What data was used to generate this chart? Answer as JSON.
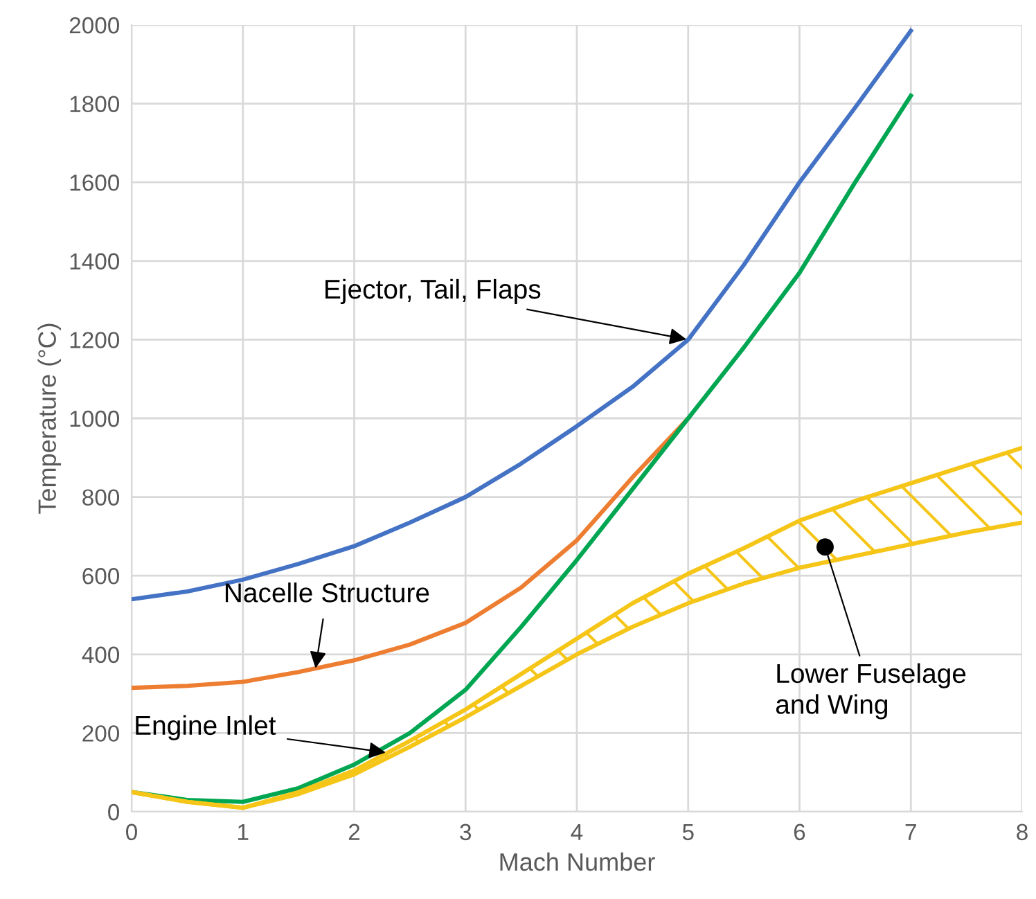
{
  "chart_data": {
    "type": "line",
    "xlabel": "Mach Number",
    "ylabel": "Temperature (°C)",
    "xlim": [
      0,
      8
    ],
    "xticks": [
      0,
      1,
      2,
      3,
      4,
      5,
      6,
      7,
      8
    ],
    "ylim": [
      0,
      2000
    ],
    "yticks": [
      0,
      200,
      400,
      600,
      800,
      1000,
      1200,
      1400,
      1600,
      1800,
      2000
    ],
    "grid": true,
    "series": [
      {
        "color": "#4472c4",
        "x": [
          0,
          0.5,
          1,
          1.5,
          2,
          2.5,
          3,
          3.5,
          4,
          4.5,
          5,
          5.5,
          6,
          6.5,
          7
        ],
        "values": [
          540,
          560,
          590,
          630,
          675,
          735,
          800,
          885,
          980,
          1080,
          1200,
          1390,
          1600,
          1790,
          1985
        ]
      },
      {
        "color": "#ed7d31",
        "x": [
          0,
          0.5,
          1,
          1.5,
          2,
          2.5,
          3,
          3.5,
          4,
          4.5,
          5
        ],
        "values": [
          315,
          320,
          330,
          355,
          385,
          425,
          480,
          570,
          690,
          850,
          1000
        ]
      },
      {
        "color": "#00a651",
        "x": [
          0,
          0.5,
          1,
          1.5,
          2,
          2.5,
          3,
          3.5,
          4,
          4.5,
          5,
          5.5,
          6,
          6.5,
          7
        ],
        "values": [
          50,
          30,
          25,
          60,
          120,
          200,
          310,
          470,
          640,
          820,
          1000,
          1180,
          1370,
          1600,
          1820
        ]
      },
      {
        "color": "#f5c518",
        "x": [
          0,
          0.5,
          1,
          1.5,
          2,
          2.5,
          3,
          3.5,
          4,
          4.5,
          5,
          5.5,
          6,
          6.5,
          7,
          7.5,
          8
        ],
        "values": [
          50,
          25,
          10,
          45,
          95,
          165,
          240,
          320,
          400,
          470,
          530,
          580,
          620,
          650,
          680,
          710,
          735
        ]
      },
      {
        "color": "#f5c518",
        "x": [
          0,
          0.5,
          1,
          1.5,
          2,
          2.5,
          3,
          3.5,
          4,
          4.5,
          5,
          5.5,
          6,
          6.5,
          7,
          7.5,
          8
        ],
        "values": [
          50,
          25,
          10,
          50,
          105,
          180,
          260,
          350,
          440,
          530,
          605,
          670,
          740,
          790,
          835,
          880,
          925
        ],
        "upper": [
          50,
          25,
          10,
          50,
          105,
          180,
          260,
          350,
          440,
          530,
          605,
          670,
          740,
          790,
          835,
          880,
          925
        ],
        "lower": [
          50,
          25,
          10,
          45,
          95,
          165,
          240,
          320,
          400,
          470,
          530,
          580,
          620,
          650,
          680,
          710,
          735
        ]
      }
    ],
    "annotations": [
      {
        "text": "Ejector, Tail, Flaps",
        "x": 5,
        "y": 1200
      },
      {
        "text": "Nacelle Structure",
        "x": 1.65,
        "y": 360
      },
      {
        "text": "Engine Inlet",
        "x": 2.3,
        "y": 150
      },
      {
        "text": "Lower Fuselage\nand Wing",
        "x": 6.23,
        "y": 673
      }
    ]
  }
}
